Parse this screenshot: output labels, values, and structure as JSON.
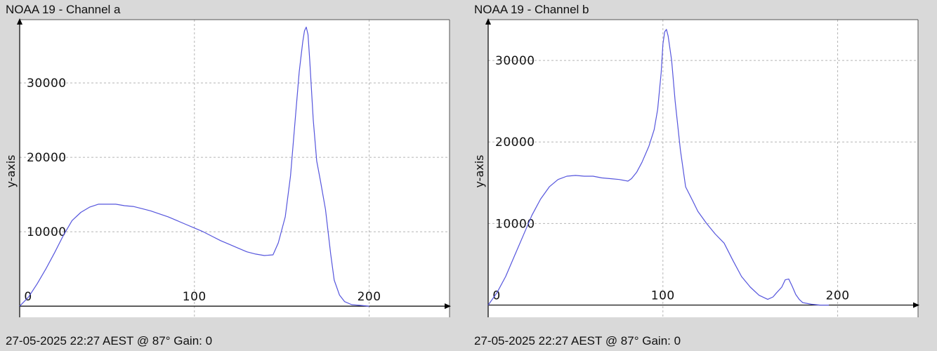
{
  "chart_data": [
    {
      "type": "line",
      "title": "NOAA 19 - Channel a",
      "ylabel": "y-axis",
      "xlabel": "",
      "footer": "27-05-2025 22:27 AEST @ 87° Gain: 0",
      "xlim": [
        0,
        246
      ],
      "ylim": [
        -1500,
        38500
      ],
      "xticks": [
        0,
        100,
        200
      ],
      "yticks": [
        10000,
        20000,
        30000
      ],
      "grid": true,
      "line_color": "#5555dd",
      "series": [
        {
          "x": [
            0,
            5,
            10,
            15,
            20,
            25,
            30,
            35,
            40,
            45,
            50,
            55,
            60,
            65,
            70,
            75,
            80,
            85,
            90,
            95,
            100,
            105,
            110,
            115,
            120,
            125,
            130,
            135,
            140,
            145,
            148,
            152,
            155,
            158,
            160,
            162,
            163,
            164,
            165,
            166,
            168,
            170,
            172,
            175,
            178,
            180,
            183,
            186,
            190,
            195,
            200
          ],
          "y": [
            0,
            1200,
            3000,
            5000,
            7200,
            9500,
            11500,
            12600,
            13300,
            13700,
            13700,
            13700,
            13500,
            13400,
            13100,
            12800,
            12400,
            12000,
            11500,
            11000,
            10500,
            10000,
            9400,
            8800,
            8300,
            7800,
            7300,
            7000,
            6800,
            6900,
            8500,
            12000,
            17500,
            26000,
            31500,
            35500,
            37000,
            37500,
            36500,
            33000,
            25000,
            19500,
            17000,
            13000,
            7000,
            3500,
            1500,
            600,
            200,
            100,
            0
          ]
        }
      ]
    },
    {
      "type": "line",
      "title": "NOAA 19 - Channel b",
      "ylabel": "y-axis",
      "xlabel": "",
      "footer": "27-05-2025 22:27 AEST @ 87° Gain: 0",
      "xlim": [
        0,
        246
      ],
      "ylim": [
        -1500,
        35000
      ],
      "xticks": [
        0,
        100,
        200
      ],
      "yticks": [
        10000,
        20000,
        30000
      ],
      "grid": true,
      "line_color": "#5555dd",
      "series": [
        {
          "x": [
            0,
            5,
            10,
            15,
            20,
            25,
            30,
            35,
            40,
            45,
            50,
            55,
            60,
            65,
            70,
            75,
            80,
            82,
            85,
            88,
            90,
            92,
            95,
            97,
            99,
            100,
            101,
            102,
            103,
            105,
            107,
            110,
            113,
            117,
            120,
            125,
            130,
            135,
            140,
            145,
            150,
            155,
            160,
            163,
            165,
            168,
            170,
            172,
            174,
            176,
            178,
            180,
            185,
            190,
            195
          ],
          "y": [
            0,
            1500,
            3500,
            6000,
            8500,
            11000,
            13000,
            14500,
            15400,
            15800,
            15900,
            15800,
            15800,
            15600,
            15500,
            15400,
            15200,
            15500,
            16300,
            17500,
            18500,
            19500,
            21500,
            24000,
            28500,
            32000,
            33500,
            33800,
            33000,
            30000,
            25000,
            19000,
            14500,
            12800,
            11500,
            10000,
            8700,
            7600,
            5500,
            3500,
            2200,
            1200,
            700,
            1000,
            1500,
            2200,
            3100,
            3200,
            2300,
            1300,
            700,
            300,
            100,
            0,
            0
          ]
        }
      ]
    }
  ]
}
